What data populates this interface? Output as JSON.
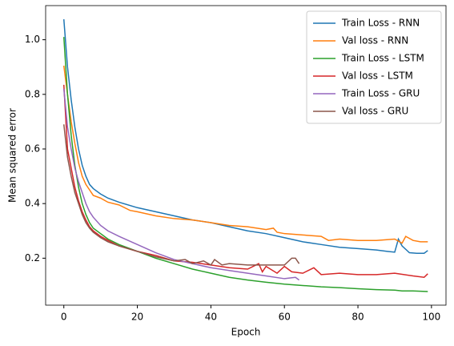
{
  "chart_data": {
    "type": "line",
    "xlabel": "Epoch",
    "ylabel": "Mean squared error",
    "xlim": [
      -4.95,
      103.95
    ],
    "ylim": [
      0.028,
      1.125
    ],
    "xticks": [
      0,
      20,
      40,
      60,
      80,
      100
    ],
    "yticks": [
      0.2,
      0.4,
      0.6,
      0.8,
      {
        "value": 1,
        "label": "1.0"
      }
    ],
    "legend": "upper right",
    "series": [
      {
        "name": "Train Loss - RNN",
        "color": "#1f77b4",
        "x": [
          0,
          1,
          2,
          3,
          4,
          5,
          6,
          7,
          8,
          10,
          12,
          15,
          20,
          25,
          30,
          35,
          40,
          45,
          50,
          55,
          60,
          65,
          70,
          75,
          80,
          85,
          88,
          90,
          91,
          92,
          94,
          96,
          98,
          99
        ],
        "values": [
          1.075,
          0.9,
          0.78,
          0.68,
          0.6,
          0.54,
          0.5,
          0.47,
          0.455,
          0.435,
          0.42,
          0.405,
          0.385,
          0.37,
          0.355,
          0.34,
          0.33,
          0.315,
          0.3,
          0.29,
          0.275,
          0.26,
          0.25,
          0.24,
          0.235,
          0.23,
          0.225,
          0.222,
          0.27,
          0.245,
          0.22,
          0.218,
          0.218,
          0.228
        ]
      },
      {
        "name": "Val loss - RNN",
        "color": "#ff7f0e",
        "x": [
          0,
          1,
          2,
          3,
          4,
          5,
          6,
          7,
          8,
          10,
          12,
          15,
          18,
          20,
          25,
          30,
          35,
          40,
          45,
          50,
          55,
          57,
          58,
          60,
          65,
          70,
          72,
          75,
          80,
          85,
          90,
          92,
          93,
          95,
          97,
          99
        ],
        "values": [
          0.905,
          0.8,
          0.7,
          0.62,
          0.55,
          0.5,
          0.47,
          0.45,
          0.43,
          0.42,
          0.405,
          0.395,
          0.375,
          0.37,
          0.355,
          0.345,
          0.34,
          0.33,
          0.32,
          0.315,
          0.305,
          0.31,
          0.295,
          0.29,
          0.285,
          0.28,
          0.265,
          0.27,
          0.265,
          0.265,
          0.27,
          0.255,
          0.28,
          0.265,
          0.26,
          0.26
        ]
      },
      {
        "name": "Train Loss - LSTM",
        "color": "#2ca02c",
        "x": [
          0,
          1,
          2,
          3,
          4,
          5,
          6,
          7,
          8,
          10,
          12,
          15,
          20,
          25,
          30,
          35,
          40,
          45,
          50,
          55,
          60,
          65,
          70,
          75,
          80,
          85,
          90,
          92,
          95,
          99
        ],
        "values": [
          1.01,
          0.8,
          0.65,
          0.54,
          0.46,
          0.4,
          0.36,
          0.33,
          0.31,
          0.29,
          0.27,
          0.25,
          0.225,
          0.2,
          0.18,
          0.16,
          0.145,
          0.13,
          0.12,
          0.112,
          0.105,
          0.1,
          0.095,
          0.092,
          0.088,
          0.085,
          0.083,
          0.08,
          0.08,
          0.078
        ]
      },
      {
        "name": "Val loss - LSTM",
        "color": "#d62728",
        "x": [
          0,
          1,
          2,
          3,
          4,
          5,
          6,
          7,
          8,
          10,
          12,
          15,
          20,
          25,
          30,
          35,
          40,
          45,
          50,
          53,
          54,
          55,
          58,
          60,
          62,
          65,
          68,
          70,
          75,
          80,
          85,
          90,
          95,
          98,
          99
        ],
        "values": [
          0.835,
          0.6,
          0.53,
          0.46,
          0.41,
          0.37,
          0.34,
          0.315,
          0.3,
          0.28,
          0.265,
          0.245,
          0.225,
          0.21,
          0.19,
          0.185,
          0.175,
          0.165,
          0.16,
          0.18,
          0.15,
          0.17,
          0.145,
          0.17,
          0.15,
          0.145,
          0.165,
          0.14,
          0.145,
          0.14,
          0.14,
          0.145,
          0.135,
          0.13,
          0.143
        ]
      },
      {
        "name": "Train Loss - GRU",
        "color": "#9467bd",
        "x": [
          0,
          1,
          2,
          3,
          4,
          5,
          6,
          7,
          8,
          10,
          12,
          15,
          20,
          25,
          30,
          35,
          40,
          45,
          50,
          55,
          60,
          63,
          64
        ],
        "values": [
          0.82,
          0.68,
          0.6,
          0.53,
          0.48,
          0.44,
          0.4,
          0.37,
          0.35,
          0.32,
          0.3,
          0.28,
          0.25,
          0.22,
          0.195,
          0.18,
          0.165,
          0.155,
          0.145,
          0.135,
          0.125,
          0.13,
          0.12
        ]
      },
      {
        "name": "Val loss - GRU",
        "color": "#8c564b",
        "x": [
          0,
          1,
          2,
          3,
          4,
          5,
          6,
          7,
          8,
          10,
          12,
          15,
          20,
          25,
          30,
          33,
          35,
          38,
          40,
          41,
          43,
          45,
          50,
          55,
          60,
          62,
          63,
          64
        ],
        "values": [
          0.69,
          0.57,
          0.5,
          0.44,
          0.4,
          0.36,
          0.33,
          0.31,
          0.295,
          0.275,
          0.26,
          0.245,
          0.225,
          0.205,
          0.19,
          0.195,
          0.18,
          0.19,
          0.175,
          0.195,
          0.175,
          0.18,
          0.175,
          0.175,
          0.175,
          0.2,
          0.2,
          0.18
        ]
      }
    ]
  }
}
